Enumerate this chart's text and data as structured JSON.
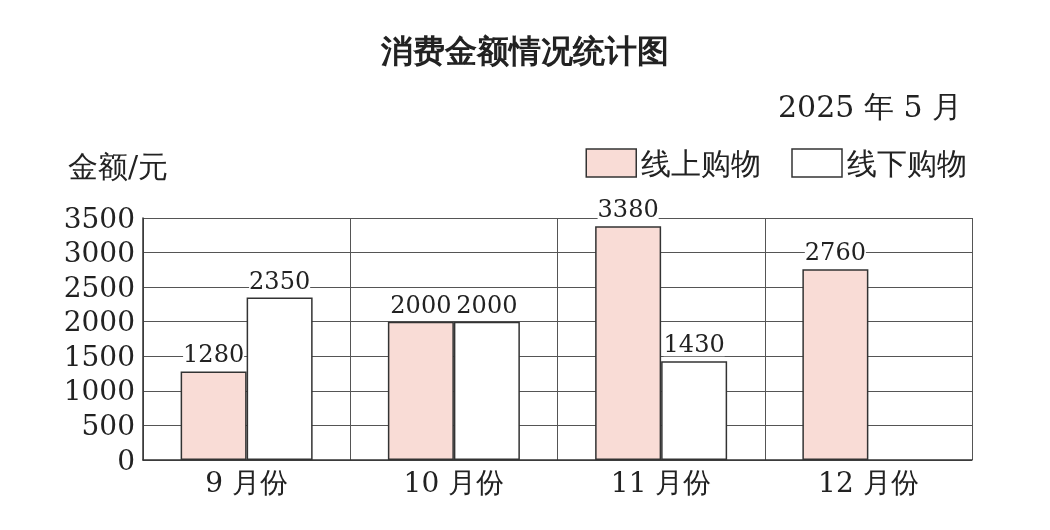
{
  "chart_data": {
    "type": "bar",
    "title": "消费金额情况统计图",
    "subtitle": "2025 年 5 月",
    "ylabel": "金额/元",
    "categories": [
      "9 月份",
      "10 月份",
      "11 月份",
      "12 月份"
    ],
    "series": [
      {
        "name": "线上购物",
        "color": "#f9dcd6",
        "values": [
          1280,
          2000,
          3380,
          2760
        ]
      },
      {
        "name": "线下购物",
        "color": "#ffffff",
        "values": [
          2350,
          2000,
          1430,
          null
        ]
      }
    ],
    "ylim": [
      0,
      3500
    ],
    "yticks": [
      0,
      500,
      1000,
      1500,
      2000,
      2500,
      3000,
      3500
    ],
    "grid": true,
    "legend": "top right",
    "data_labels": true
  }
}
